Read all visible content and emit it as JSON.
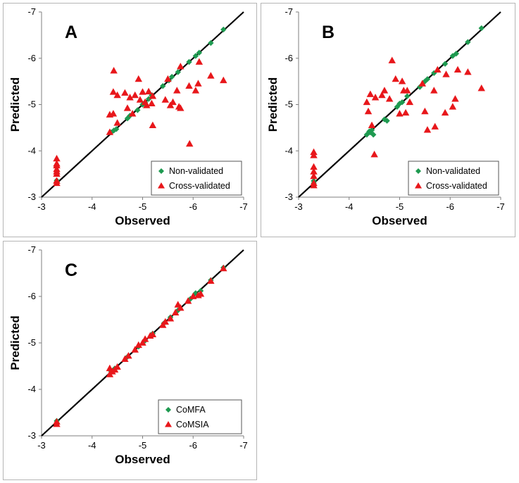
{
  "chart_data": [
    {
      "type": "scatter",
      "panel_label": "A",
      "xlabel": "Observed",
      "ylabel": "Predicted",
      "xlim": [
        -3,
        -7
      ],
      "ylim": [
        -3,
        -7
      ],
      "ticks": [
        "-3",
        "-4",
        "-5",
        "-6",
        "-7"
      ],
      "identity_line": true,
      "legend_position": "bottom-right",
      "series": [
        {
          "name": "Non-validated",
          "marker": "diamond",
          "color": "#1e9a50",
          "points": [
            [
              -3.3,
              -3.33
            ],
            [
              -3.3,
              -3.36
            ],
            [
              -3.3,
              -3.32
            ],
            [
              -4.38,
              -4.4
            ],
            [
              -4.43,
              -4.44
            ],
            [
              -4.48,
              -4.47
            ],
            [
              -4.7,
              -4.7
            ],
            [
              -4.75,
              -4.76
            ],
            [
              -4.9,
              -4.88
            ],
            [
              -5.0,
              -5.0
            ],
            [
              -5.05,
              -5.05
            ],
            [
              -5.12,
              -5.12
            ],
            [
              -5.18,
              -5.2
            ],
            [
              -5.4,
              -5.4
            ],
            [
              -5.52,
              -5.52
            ],
            [
              -5.58,
              -5.6
            ],
            [
              -5.7,
              -5.7
            ],
            [
              -5.92,
              -5.92
            ],
            [
              -6.05,
              -6.05
            ],
            [
              -6.12,
              -6.12
            ],
            [
              -6.35,
              -6.33
            ],
            [
              -6.6,
              -6.62
            ]
          ]
        },
        {
          "name": "Cross-validated",
          "marker": "triangle",
          "color": "#e8171b",
          "points": [
            [
              -3.3,
              -3.3
            ],
            [
              -3.3,
              -3.35
            ],
            [
              -3.3,
              -3.5
            ],
            [
              -3.3,
              -3.55
            ],
            [
              -3.3,
              -3.6
            ],
            [
              -3.3,
              -3.68
            ],
            [
              -3.3,
              -3.72
            ],
            [
              -3.3,
              -3.83
            ],
            [
              -4.35,
              -4.4
            ],
            [
              -4.35,
              -4.78
            ],
            [
              -4.42,
              -4.8
            ],
            [
              -4.42,
              -5.27
            ],
            [
              -4.43,
              -5.73
            ],
            [
              -4.5,
              -4.6
            ],
            [
              -4.5,
              -5.2
            ],
            [
              -4.65,
              -5.25
            ],
            [
              -4.7,
              -4.92
            ],
            [
              -4.75,
              -5.15
            ],
            [
              -4.8,
              -4.8
            ],
            [
              -4.85,
              -5.2
            ],
            [
              -4.92,
              -5.55
            ],
            [
              -4.95,
              -5.1
            ],
            [
              -5.0,
              -5.27
            ],
            [
              -5.05,
              -5.05
            ],
            [
              -5.08,
              -4.98
            ],
            [
              -5.12,
              -5.28
            ],
            [
              -5.18,
              -5.02
            ],
            [
              -5.2,
              -4.55
            ],
            [
              -5.2,
              -5.18
            ],
            [
              -5.45,
              -5.1
            ],
            [
              -5.5,
              -5.55
            ],
            [
              -5.55,
              -4.98
            ],
            [
              -5.6,
              -5.05
            ],
            [
              -5.68,
              -5.3
            ],
            [
              -5.72,
              -4.95
            ],
            [
              -5.75,
              -4.92
            ],
            [
              -5.75,
              -5.82
            ],
            [
              -5.92,
              -5.4
            ],
            [
              -5.93,
              -4.15
            ],
            [
              -6.05,
              -5.3
            ],
            [
              -6.1,
              -5.45
            ],
            [
              -6.12,
              -5.92
            ],
            [
              -6.35,
              -5.62
            ],
            [
              -6.6,
              -5.52
            ]
          ]
        }
      ]
    },
    {
      "type": "scatter",
      "panel_label": "B",
      "xlabel": "Observed",
      "ylabel": "Predicted",
      "xlim": [
        -3,
        -7
      ],
      "ylim": [
        -3,
        -7
      ],
      "ticks": [
        "-3",
        "-4",
        "-5",
        "-6",
        "-7"
      ],
      "identity_line": true,
      "legend_position": "bottom-right",
      "series": [
        {
          "name": "Non-validated",
          "marker": "diamond",
          "color": "#1e9a50",
          "points": [
            [
              -3.3,
              -3.35
            ],
            [
              -3.3,
              -3.3
            ],
            [
              -4.35,
              -4.35
            ],
            [
              -4.4,
              -4.42
            ],
            [
              -4.42,
              -4.4
            ],
            [
              -4.45,
              -4.45
            ],
            [
              -4.48,
              -4.35
            ],
            [
              -4.7,
              -4.68
            ],
            [
              -4.75,
              -4.65
            ],
            [
              -4.95,
              -4.95
            ],
            [
              -5.0,
              -5.02
            ],
            [
              -5.05,
              -5.05
            ],
            [
              -5.15,
              -5.18
            ],
            [
              -5.4,
              -5.38
            ],
            [
              -5.5,
              -5.5
            ],
            [
              -5.55,
              -5.55
            ],
            [
              -5.68,
              -5.68
            ],
            [
              -5.9,
              -5.88
            ],
            [
              -6.05,
              -6.05
            ],
            [
              -6.12,
              -6.1
            ],
            [
              -6.35,
              -6.35
            ],
            [
              -6.62,
              -6.65
            ]
          ]
        },
        {
          "name": "Cross-validated",
          "marker": "triangle",
          "color": "#e8171b",
          "points": [
            [
              -3.3,
              -3.25
            ],
            [
              -3.3,
              -3.3
            ],
            [
              -3.3,
              -3.45
            ],
            [
              -3.3,
              -3.55
            ],
            [
              -3.3,
              -3.65
            ],
            [
              -3.3,
              -3.9
            ],
            [
              -3.3,
              -3.97
            ],
            [
              -4.35,
              -5.05
            ],
            [
              -4.38,
              -4.85
            ],
            [
              -4.42,
              -5.22
            ],
            [
              -4.45,
              -4.55
            ],
            [
              -4.5,
              -3.92
            ],
            [
              -4.52,
              -5.15
            ],
            [
              -4.65,
              -5.2
            ],
            [
              -4.7,
              -5.3
            ],
            [
              -4.8,
              -5.12
            ],
            [
              -4.85,
              -5.95
            ],
            [
              -4.92,
              -5.55
            ],
            [
              -5.0,
              -4.8
            ],
            [
              -5.05,
              -5.5
            ],
            [
              -5.08,
              -5.3
            ],
            [
              -5.12,
              -4.82
            ],
            [
              -5.15,
              -5.3
            ],
            [
              -5.2,
              -5.05
            ],
            [
              -5.45,
              -5.45
            ],
            [
              -5.5,
              -4.85
            ],
            [
              -5.55,
              -4.45
            ],
            [
              -5.68,
              -5.3
            ],
            [
              -5.7,
              -4.52
            ],
            [
              -5.75,
              -5.75
            ],
            [
              -5.9,
              -4.82
            ],
            [
              -5.92,
              -5.65
            ],
            [
              -6.05,
              -4.95
            ],
            [
              -6.1,
              -5.12
            ],
            [
              -6.15,
              -5.75
            ],
            [
              -6.35,
              -5.7
            ],
            [
              -6.62,
              -5.35
            ]
          ]
        }
      ]
    },
    {
      "type": "scatter",
      "panel_label": "C",
      "xlabel": "Observed",
      "ylabel": "Predicted",
      "xlim": [
        -3,
        -7
      ],
      "ylim": [
        -3,
        -7
      ],
      "ticks": [
        "-3",
        "-4",
        "-5",
        "-6",
        "-7"
      ],
      "identity_line": true,
      "legend_position": "bottom-right",
      "series": [
        {
          "name": "CoMFA",
          "marker": "diamond",
          "color": "#1e9a50",
          "points": [
            [
              -3.3,
              -3.32
            ],
            [
              -3.3,
              -3.28
            ],
            [
              -4.38,
              -4.38
            ],
            [
              -4.45,
              -4.45
            ],
            [
              -4.7,
              -4.7
            ],
            [
              -4.92,
              -4.92
            ],
            [
              -5.05,
              -5.05
            ],
            [
              -5.2,
              -5.2
            ],
            [
              -5.42,
              -5.42
            ],
            [
              -5.55,
              -5.55
            ],
            [
              -5.7,
              -5.7
            ],
            [
              -5.95,
              -5.95
            ],
            [
              -6.05,
              -6.07
            ],
            [
              -6.15,
              -6.12
            ],
            [
              -6.35,
              -6.35
            ],
            [
              -6.6,
              -6.62
            ]
          ]
        },
        {
          "name": "CoMSIA",
          "marker": "triangle",
          "color": "#e8171b",
          "points": [
            [
              -3.3,
              -3.25
            ],
            [
              -3.3,
              -3.3
            ],
            [
              -4.35,
              -4.32
            ],
            [
              -4.35,
              -4.45
            ],
            [
              -4.4,
              -4.38
            ],
            [
              -4.45,
              -4.42
            ],
            [
              -4.5,
              -4.48
            ],
            [
              -4.65,
              -4.65
            ],
            [
              -4.72,
              -4.72
            ],
            [
              -4.85,
              -4.85
            ],
            [
              -4.92,
              -4.95
            ],
            [
              -5.0,
              -5.0
            ],
            [
              -5.05,
              -5.08
            ],
            [
              -5.15,
              -5.15
            ],
            [
              -5.2,
              -5.18
            ],
            [
              -5.4,
              -5.38
            ],
            [
              -5.45,
              -5.45
            ],
            [
              -5.55,
              -5.52
            ],
            [
              -5.65,
              -5.65
            ],
            [
              -5.7,
              -5.82
            ],
            [
              -5.75,
              -5.75
            ],
            [
              -5.9,
              -5.9
            ],
            [
              -6.0,
              -6.0
            ],
            [
              -6.1,
              -6.02
            ],
            [
              -6.15,
              -6.05
            ],
            [
              -6.35,
              -6.33
            ],
            [
              -6.6,
              -6.6
            ]
          ]
        }
      ]
    }
  ]
}
